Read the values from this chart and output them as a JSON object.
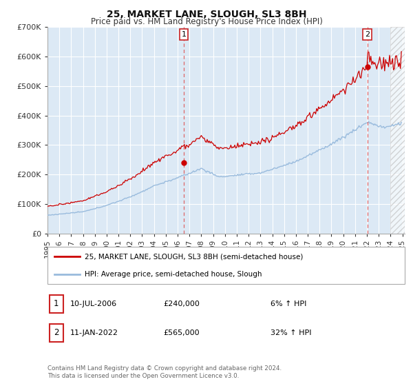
{
  "title": "25, MARKET LANE, SLOUGH, SL3 8BH",
  "subtitle": "Price paid vs. HM Land Registry's House Price Index (HPI)",
  "ylim": [
    0,
    700000
  ],
  "yticks": [
    0,
    100000,
    200000,
    300000,
    400000,
    500000,
    600000,
    700000
  ],
  "ytick_labels": [
    "£0",
    "£100K",
    "£200K",
    "£300K",
    "£400K",
    "£500K",
    "£600K",
    "£700K"
  ],
  "xlim_start": 1995.0,
  "xlim_end": 2025.2,
  "background_color": "#ffffff",
  "plot_bg_color": "#dce9f5",
  "grid_color": "#ffffff",
  "line1_color": "#cc0000",
  "line2_color": "#99bbdd",
  "sale1_date": 2006.53,
  "sale1_price": 240000,
  "sale2_date": 2022.03,
  "sale2_price": 565000,
  "legend_line1": "25, MARKET LANE, SLOUGH, SL3 8BH (semi-detached house)",
  "legend_line2": "HPI: Average price, semi-detached house, Slough",
  "footnote3": "Contains HM Land Registry data © Crown copyright and database right 2024.",
  "footnote4": "This data is licensed under the Open Government Licence v3.0.",
  "hatch_start": 2024.0
}
